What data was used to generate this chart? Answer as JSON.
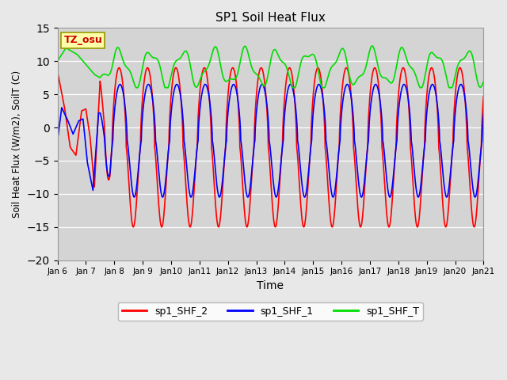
{
  "title": "SP1 Soil Heat Flux",
  "xlabel": "Time",
  "ylabel": "Soil Heat Flux (W/m2), SoilT (C)",
  "ylim": [
    -20,
    15
  ],
  "yticks": [
    -20,
    -15,
    -10,
    -5,
    0,
    5,
    10,
    15
  ],
  "xlim": [
    0,
    15
  ],
  "fig_facecolor": "#e8e8e8",
  "plot_bg_color": "#d4d4d4",
  "line_colors": {
    "SHF_2": "#ff0000",
    "SHF_1": "#0000ff",
    "SHF_T": "#00dd00"
  },
  "legend_labels": [
    "sp1_SHF_2",
    "sp1_SHF_1",
    "sp1_SHF_T"
  ],
  "xtick_labels": [
    "Jan 6",
    "Jan 7",
    "Jan 8",
    "Jan 9",
    "Jan 10",
    "Jan 11",
    "Jan 12",
    "Jan 13",
    "Jan 14",
    "Jan 15",
    "Jan 16",
    "Jan 17",
    "Jan 18",
    "Jan 19",
    "Jan 20",
    "Jan 21"
  ],
  "tz_label": "TZ_osu",
  "tz_box_color": "#ffffaa",
  "tz_text_color": "#cc0000"
}
